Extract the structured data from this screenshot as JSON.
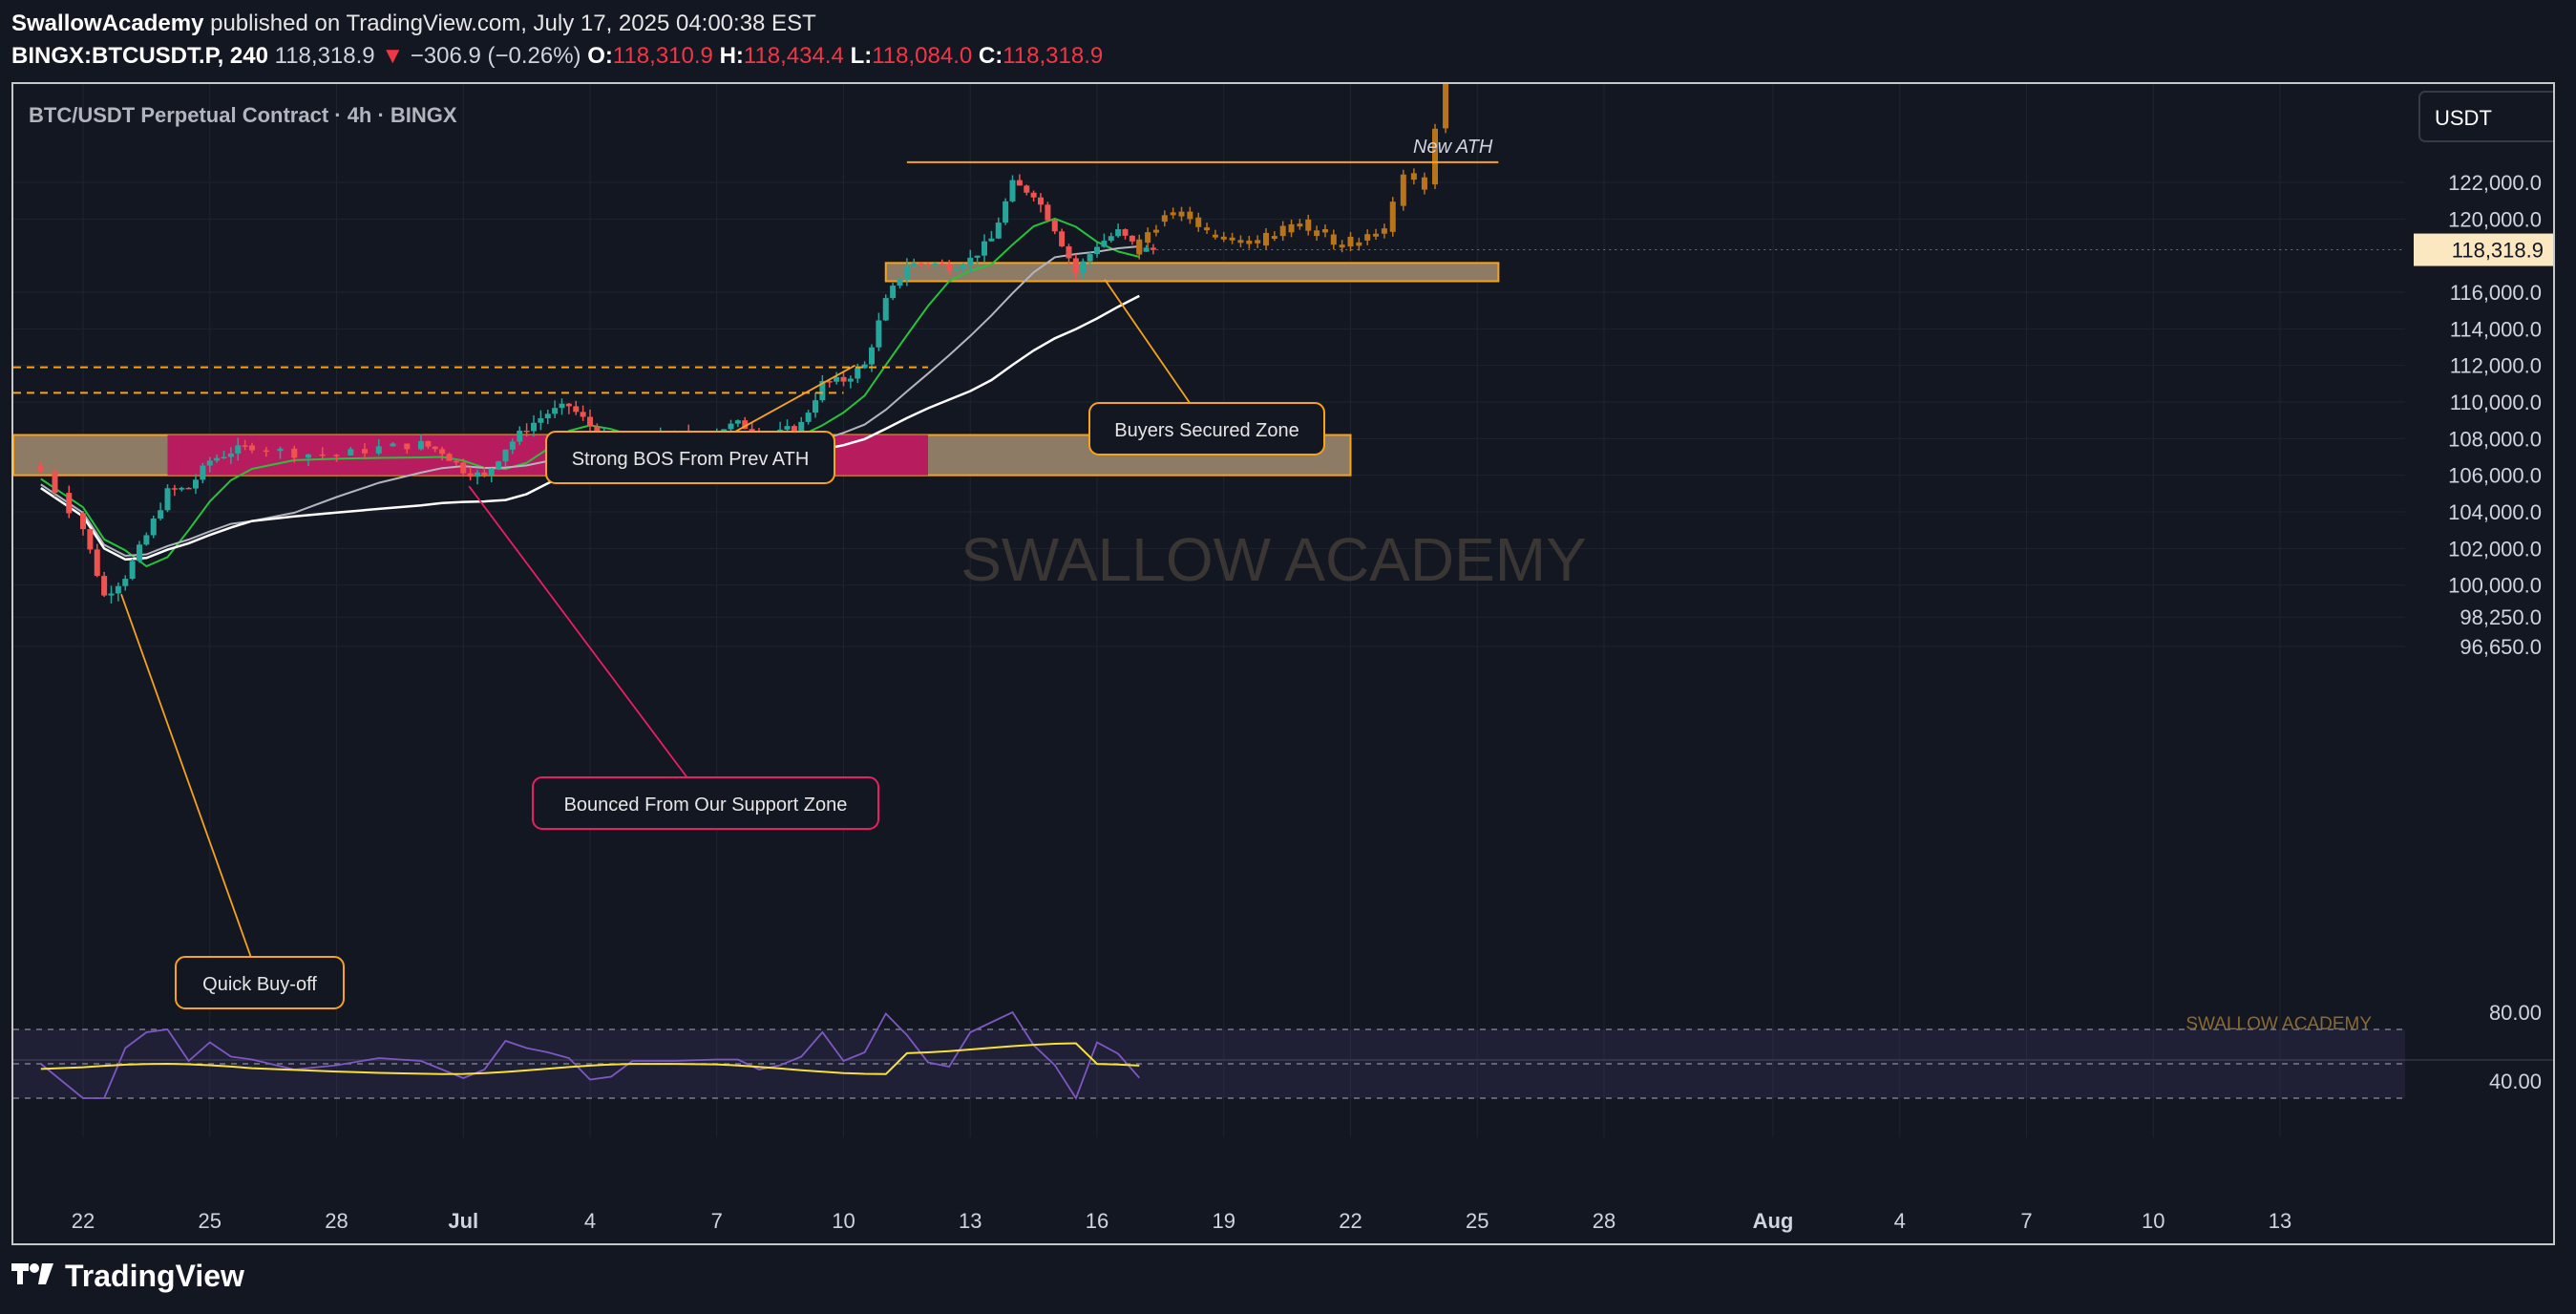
{
  "header": {
    "author": "SwallowAcademy",
    "published": "published on TradingView.com, July 17, 2025 04:00:38 EST",
    "symbol": "BINGX:BTCUSDT.P, 240",
    "last": "118,318.9",
    "change_arrow": "▼",
    "change": "−306.9 (−0.26%)",
    "o_label": "O:",
    "o_value": "118,310.9",
    "h_label": "H:",
    "h_value": "118,434.4",
    "l_label": "L:",
    "l_value": "118,084.0",
    "c_label": "C:",
    "c_value": "118,318.9"
  },
  "chart_title": "BTC/USDT Perpetual Contract · 4h · BINGX",
  "currency_button": "USDT",
  "watermark_center": "SWALLOW ACADEMY",
  "watermark_corner": "SWALLOW ACADEMY",
  "footer_brand": "TradingView",
  "colors": {
    "background": "#131722",
    "up_candle": "#26a69a",
    "down_candle": "#ef5350",
    "projection": "#b8741a",
    "support_zone": "#b71c5f",
    "zone_fill": "#8d7b65",
    "zone_border": "#f7a21b",
    "ema_fast": "#27c23b",
    "ema_fast_down": "#c62828",
    "ma_mid": "#b2b5be",
    "ma_slow": "#ffffff",
    "rsi_line": "#7e57c2",
    "rsi_ma": "#f7e13b",
    "price_tag": "#fbe7c0"
  },
  "chart_data": {
    "type": "candlestick",
    "timeframe": "4h",
    "y_ticks": [
      "122,000.0",
      "120,000.0",
      "118,318.9",
      "116,000.0",
      "114,000.0",
      "112,000.0",
      "110,000.0",
      "108,000.0",
      "106,000.0",
      "104,000.0",
      "102,000.0",
      "100,000.0",
      "98,250.0",
      "96,650.0"
    ],
    "y_tick_values": [
      122000,
      120000,
      118318.9,
      116000,
      114000,
      112000,
      110000,
      108000,
      106000,
      104000,
      102000,
      100000,
      98250,
      96650
    ],
    "current_price": "118,318.9",
    "x_ticks": [
      "22",
      "25",
      "28",
      "Jul",
      "4",
      "7",
      "10",
      "13",
      "16",
      "19",
      "22",
      "25",
      "28",
      "Aug",
      "4",
      "7",
      "10",
      "13"
    ],
    "x_tick_dates": [
      "2025-06-22",
      "2025-06-25",
      "2025-06-28",
      "2025-07-01",
      "2025-07-04",
      "2025-07-07",
      "2025-07-10",
      "2025-07-13",
      "2025-07-16",
      "2025-07-19",
      "2025-07-22",
      "2025-07-25",
      "2025-07-28",
      "2025-08-01",
      "2025-08-04",
      "2025-08-07",
      "2025-08-10",
      "2025-08-13"
    ],
    "close_series": [
      [
        "2025-06-21",
        106200
      ],
      [
        "2025-06-22",
        103100
      ],
      [
        "2025-06-22 12:00",
        99400
      ],
      [
        "2025-06-23",
        100500
      ],
      [
        "2025-06-23 12:00",
        102700
      ],
      [
        "2025-06-24",
        105100
      ],
      [
        "2025-06-24 12:00",
        105300
      ],
      [
        "2025-06-25",
        106800
      ],
      [
        "2025-06-25 12:00",
        107300
      ],
      [
        "2025-06-26",
        107600
      ],
      [
        "2025-06-27",
        107200
      ],
      [
        "2025-06-28",
        107100
      ],
      [
        "2025-06-29",
        107500
      ],
      [
        "2025-06-30",
        107700
      ],
      [
        "2025-06-30 12:00",
        107300
      ],
      [
        "2025-07-01",
        106300
      ],
      [
        "2025-07-01 12:00",
        105900
      ],
      [
        "2025-07-02",
        107500
      ],
      [
        "2025-07-02 12:00",
        108600
      ],
      [
        "2025-07-03",
        109400
      ],
      [
        "2025-07-03 12:00",
        109800
      ],
      [
        "2025-07-04",
        108700
      ],
      [
        "2025-07-04 12:00",
        107800
      ],
      [
        "2025-07-05",
        108000
      ],
      [
        "2025-07-06",
        108200
      ],
      [
        "2025-07-07",
        108500
      ],
      [
        "2025-07-07 12:00",
        108800
      ],
      [
        "2025-07-08",
        108400
      ],
      [
        "2025-07-08 12:00",
        108300
      ],
      [
        "2025-07-09",
        108800
      ],
      [
        "2025-07-09 12:00",
        111000
      ],
      [
        "2025-07-10",
        111200
      ],
      [
        "2025-07-10 12:00",
        112000
      ],
      [
        "2025-07-11",
        115500
      ],
      [
        "2025-07-11 12:00",
        117500
      ],
      [
        "2025-07-12",
        117600
      ],
      [
        "2025-07-12 12:00",
        117400
      ],
      [
        "2025-07-13",
        117800
      ],
      [
        "2025-07-13 12:00",
        118900
      ],
      [
        "2025-07-14",
        121900
      ],
      [
        "2025-07-14 12:00",
        121400
      ],
      [
        "2025-07-15",
        119500
      ],
      [
        "2025-07-15 12:00",
        117100
      ],
      [
        "2025-07-16",
        118600
      ],
      [
        "2025-07-16 12:00",
        119300
      ],
      [
        "2025-07-17",
        118318.9
      ]
    ],
    "projection_path": [
      [
        "2025-07-17",
        118300
      ],
      [
        "2025-07-18",
        120500
      ],
      [
        "2025-07-19",
        119000
      ],
      [
        "2025-07-20",
        118800
      ],
      [
        "2025-07-21",
        119800
      ],
      [
        "2025-07-22",
        118600
      ],
      [
        "2025-07-23",
        119500
      ],
      [
        "2025-07-23 12:00",
        122400
      ],
      [
        "2025-07-24",
        121700
      ],
      [
        "2025-07-24 12:00",
        128000
      ]
    ],
    "levels": [
      {
        "label": "New ATH",
        "price": 123100,
        "style": "solid"
      },
      {
        "price": 111900,
        "style": "dashed"
      },
      {
        "price": 110500,
        "style": "dashed"
      }
    ],
    "zones": [
      {
        "name": "support",
        "from": 106000,
        "to": 108200
      },
      {
        "name": "buyers",
        "from": 116600,
        "to": 117600
      }
    ],
    "annotations": [
      {
        "text": "Strong BOS From Prev ATH",
        "date": "2025-07-10"
      },
      {
        "text": "Buyers Secured Zone",
        "date": "2025-07-16"
      },
      {
        "text": "Bounced From Our Support Zone",
        "date": "2025-07-01"
      },
      {
        "text": "Quick Buy-off",
        "date": "2025-06-22"
      }
    ],
    "rsi": {
      "ticks": [
        "80.00",
        "40.00"
      ],
      "tick_values": [
        80,
        40
      ],
      "upper_band": 70,
      "middle_band": 50,
      "lower_band": 30
    }
  }
}
